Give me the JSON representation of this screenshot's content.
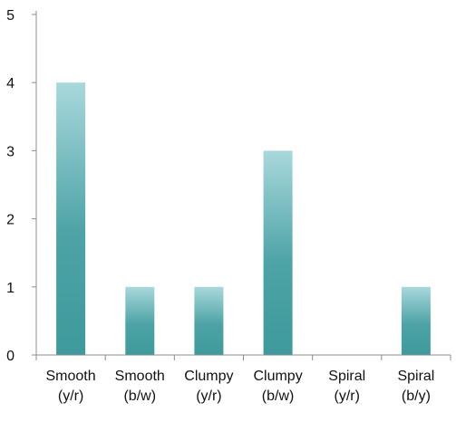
{
  "chart_data": {
    "type": "bar",
    "categories": [
      "Smooth (y/r)",
      "Smooth (b/w)",
      "Clumpy (y/r)",
      "Clumpy (b/w)",
      "Spiral (y/r)",
      "Spiral (b/y)"
    ],
    "category_lines": [
      [
        "Smooth",
        "(y/r)"
      ],
      [
        "Smooth",
        "(b/w)"
      ],
      [
        "Clumpy",
        "(y/r)"
      ],
      [
        "Clumpy",
        "(b/w)"
      ],
      [
        "Spiral",
        "(y/r)"
      ],
      [
        "Spiral",
        "(b/y)"
      ]
    ],
    "values": [
      4,
      1,
      1,
      3,
      0,
      1
    ],
    "yticks": [
      "0",
      "1",
      "2",
      "3",
      "4",
      "5"
    ],
    "ylim": [
      0,
      5
    ],
    "title": "",
    "xlabel": "",
    "ylabel": "",
    "grid": false,
    "colors": {
      "bar_top": "#a8d8dc",
      "bar_bottom": "#3e9a9c",
      "axis": "#8c8c8c"
    }
  }
}
